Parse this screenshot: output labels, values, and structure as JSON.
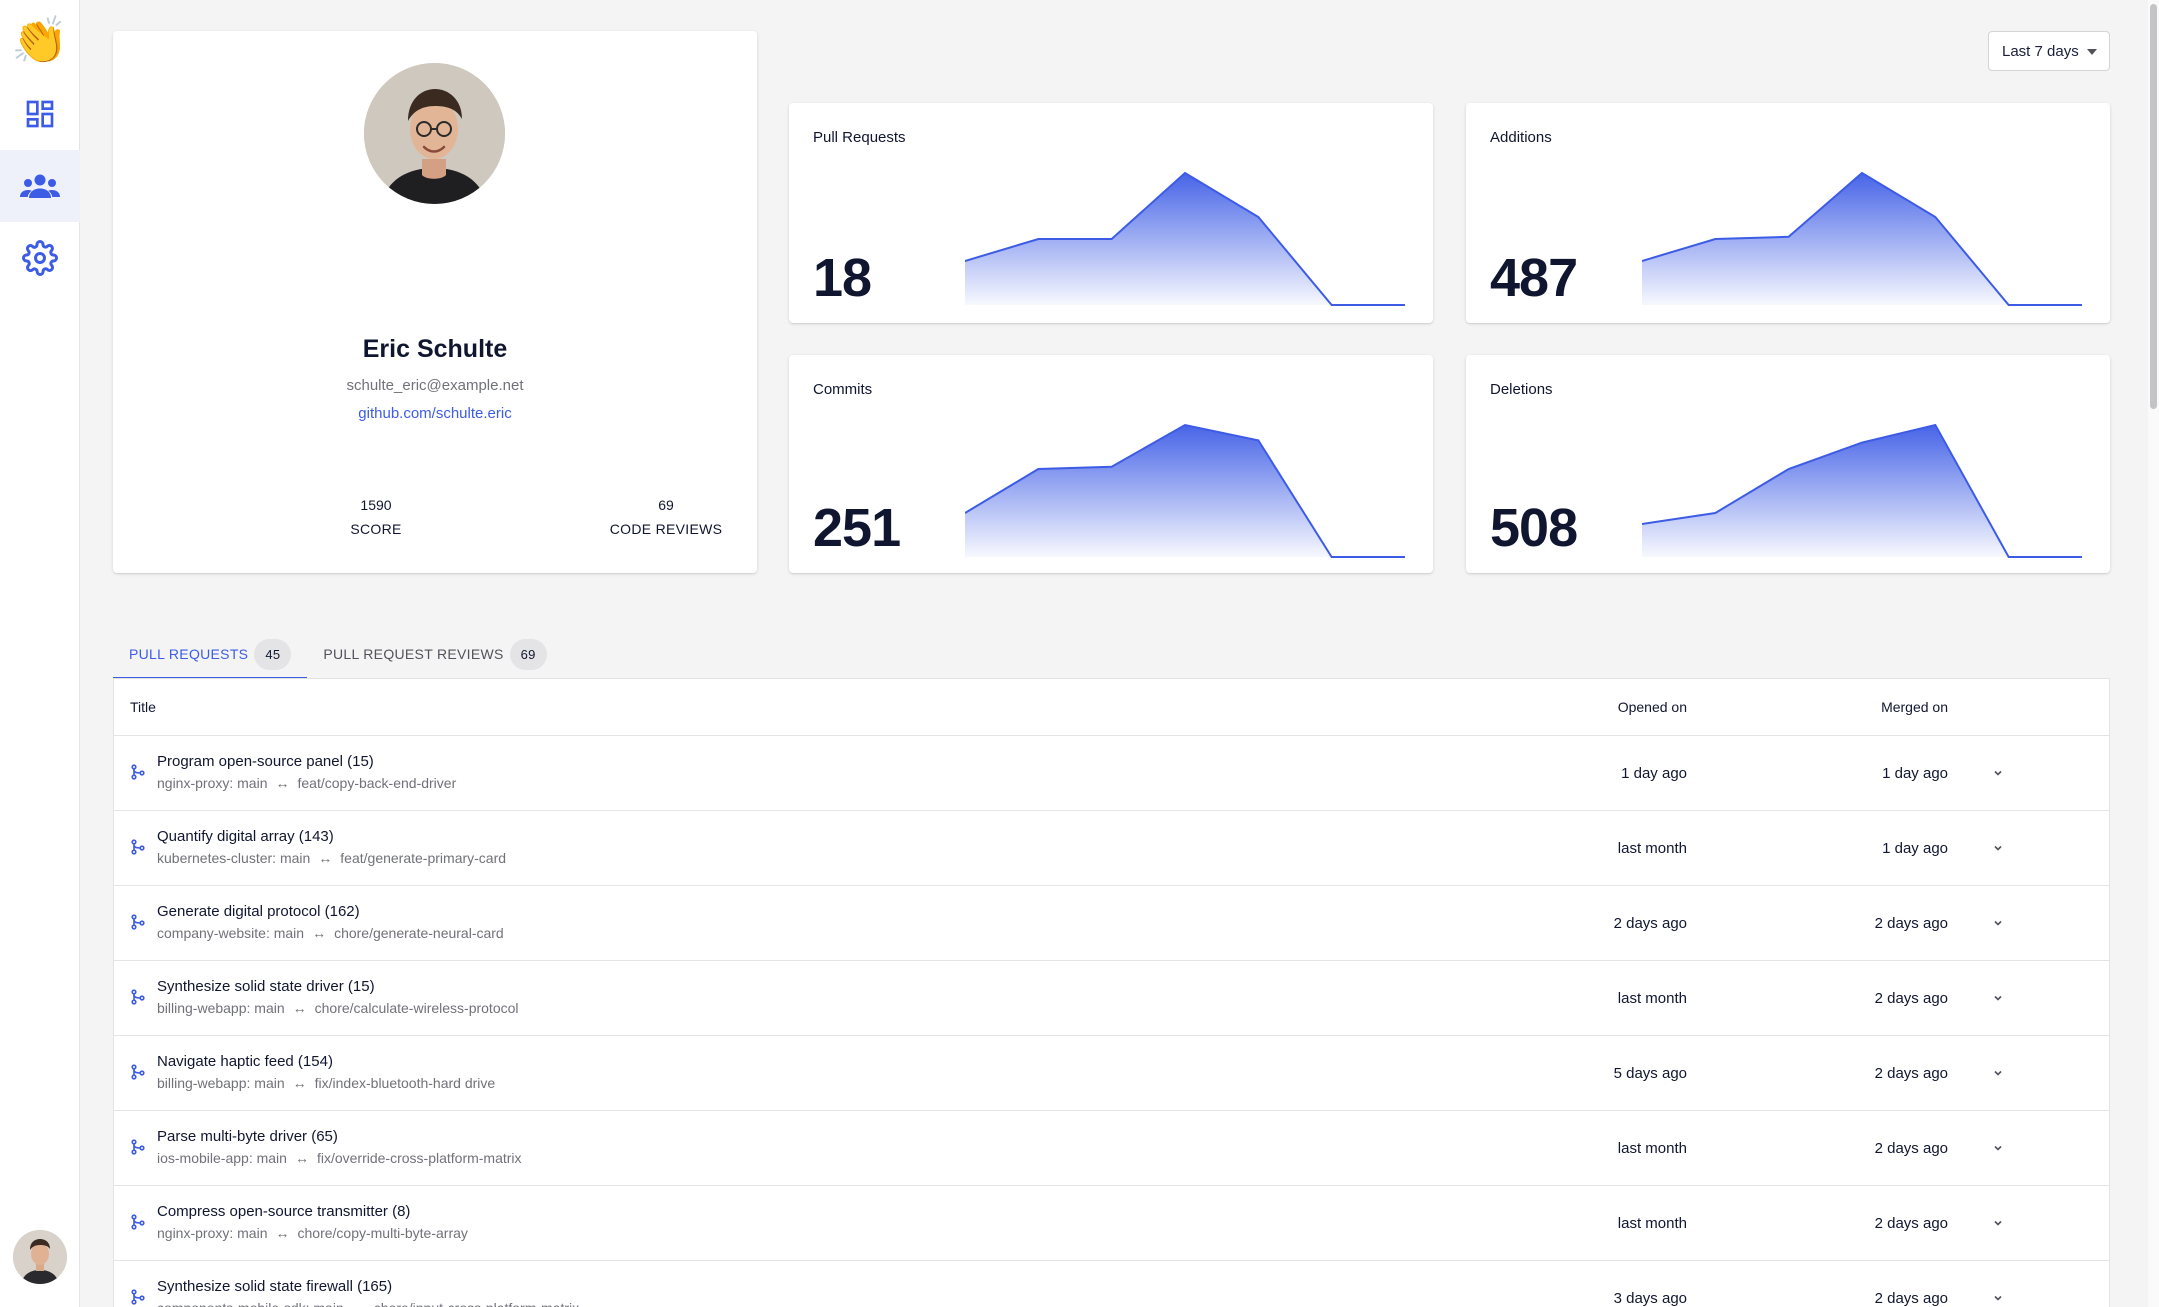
{
  "colors": {
    "accent": "#3d5ce6",
    "text": "#10162f",
    "muted": "#71717a"
  },
  "sidebar": {
    "logo_emoji": "👏",
    "items": [
      {
        "name": "dashboard",
        "icon": "dashboard-icon"
      },
      {
        "name": "team",
        "icon": "team-icon",
        "active": true
      },
      {
        "name": "settings",
        "icon": "gear-icon"
      }
    ]
  },
  "filters": {
    "range_label": "Last 7 days"
  },
  "profile": {
    "name": "Eric Schulte",
    "email": "schulte_eric@example.net",
    "github": "github.com/schulte.eric",
    "score_value": "1590",
    "score_label": "SCORE",
    "reviews_value": "69",
    "reviews_label": "CODE REVIEWS"
  },
  "metrics": [
    {
      "title": "Pull Requests",
      "value": "18",
      "trend": [
        2,
        3,
        3,
        6,
        4,
        0,
        0
      ]
    },
    {
      "title": "Additions",
      "value": "487",
      "trend": [
        2,
        3,
        3.1,
        6,
        4,
        0,
        0
      ]
    },
    {
      "title": "Commits",
      "value": "251",
      "trend": [
        2,
        4,
        4.1,
        6,
        5.3,
        0,
        0
      ]
    },
    {
      "title": "Deletions",
      "value": "508",
      "trend": [
        1.5,
        2,
        4,
        5.2,
        6,
        0,
        0
      ]
    }
  ],
  "tabs": [
    {
      "label": "PULL REQUESTS",
      "count": "45"
    },
    {
      "label": "PULL REQUEST REVIEWS",
      "count": "69"
    }
  ],
  "table": {
    "columns": {
      "title": "Title",
      "opened": "Opened on",
      "merged": "Merged on"
    },
    "rows": [
      {
        "title": "Program open-source panel (15)",
        "repo": "nginx-proxy: main",
        "arrow": "↔",
        "branch": "feat/copy-back-end-driver",
        "opened": "1 day ago",
        "merged": "1 day ago"
      },
      {
        "title": "Quantify digital array (143)",
        "repo": "kubernetes-cluster: main",
        "arrow": "↔",
        "branch": "feat/generate-primary-card",
        "opened": "last month",
        "merged": "1 day ago"
      },
      {
        "title": "Generate digital protocol (162)",
        "repo": "company-website: main",
        "arrow": "↔",
        "branch": "chore/generate-neural-card",
        "opened": "2 days ago",
        "merged": "2 days ago"
      },
      {
        "title": "Synthesize solid state driver (15)",
        "repo": "billing-webapp: main",
        "arrow": "↔",
        "branch": "chore/calculate-wireless-protocol",
        "opened": "last month",
        "merged": "2 days ago"
      },
      {
        "title": "Navigate haptic feed (154)",
        "repo": "billing-webapp: main",
        "arrow": "↔",
        "branch": "fix/index-bluetooth-hard drive",
        "opened": "5 days ago",
        "merged": "2 days ago"
      },
      {
        "title": "Parse multi-byte driver (65)",
        "repo": "ios-mobile-app: main",
        "arrow": "↔",
        "branch": "fix/override-cross-platform-matrix",
        "opened": "last month",
        "merged": "2 days ago"
      },
      {
        "title": "Compress open-source transmitter (8)",
        "repo": "nginx-proxy: main",
        "arrow": "↔",
        "branch": "chore/copy-multi-byte-array",
        "opened": "last month",
        "merged": "2 days ago"
      },
      {
        "title": "Synthesize solid state firewall (165)",
        "repo": "components-mobile-sdk: main",
        "arrow": "↔",
        "branch": "chore/input-cross-platform-matrix",
        "opened": "3 days ago",
        "merged": "2 days ago"
      }
    ]
  }
}
